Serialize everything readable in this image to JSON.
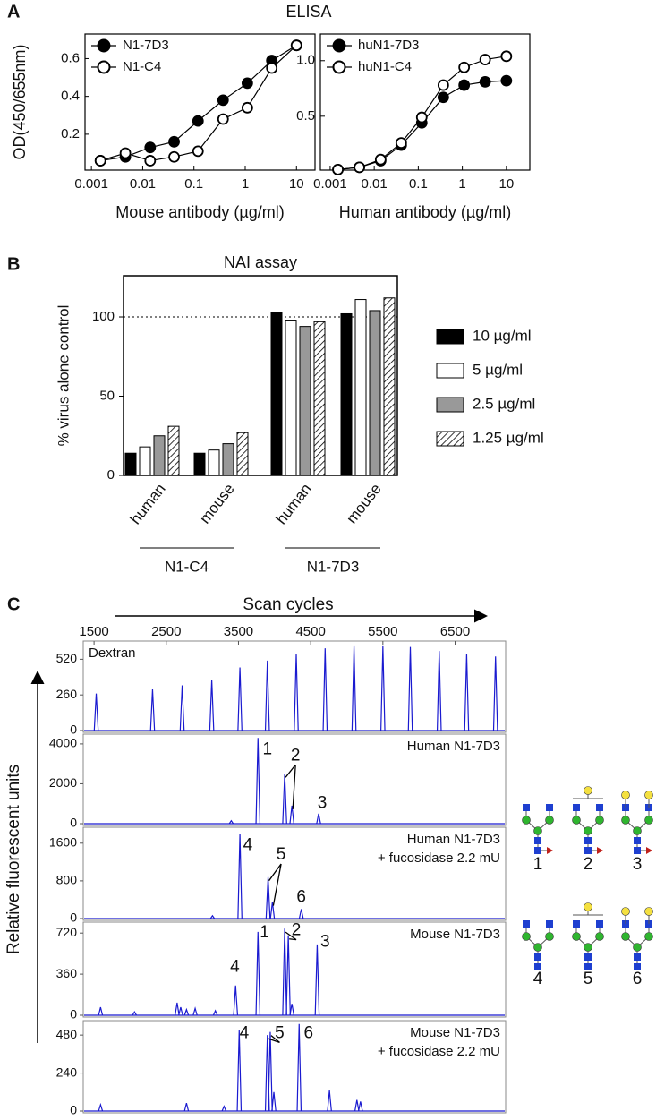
{
  "panel_labels": [
    "A",
    "B",
    "C"
  ],
  "chart_data": [
    {
      "type": "line",
      "title": "ELISA",
      "xlabel": "Mouse antibody (µg/ml)",
      "ylabel": "OD(450/655nm)",
      "log_x": true,
      "x": [
        0.0015,
        0.0046,
        0.014,
        0.041,
        0.12,
        0.37,
        1.1,
        3.3,
        10
      ],
      "series": [
        {
          "name": "N1-7D3",
          "color": "#000000",
          "values": [
            0.06,
            0.08,
            0.13,
            0.16,
            0.27,
            0.38,
            0.47,
            0.59,
            0.67
          ]
        },
        {
          "name": "N1-C4",
          "color": "#ffffff",
          "values": [
            0.06,
            0.1,
            0.06,
            0.08,
            0.11,
            0.28,
            0.34,
            0.55,
            0.67
          ]
        }
      ],
      "xlim": [
        0.00075,
        23
      ],
      "ylim": [
        0.01,
        0.73
      ],
      "xticks": [
        0.001,
        0.01,
        0.1,
        1,
        10
      ],
      "yticks": [
        0.2,
        0.4,
        0.6
      ]
    },
    {
      "type": "line",
      "xlabel": "Human antibody (µg/ml)",
      "log_x": true,
      "x": [
        0.0015,
        0.0046,
        0.014,
        0.041,
        0.12,
        0.37,
        1.1,
        3.3,
        10
      ],
      "series": [
        {
          "name": "huN1-7D3",
          "color": "#000000",
          "values": [
            0.02,
            0.04,
            0.1,
            0.24,
            0.44,
            0.67,
            0.78,
            0.81,
            0.82
          ]
        },
        {
          "name": "huN1-C4",
          "color": "#ffffff",
          "values": [
            0.02,
            0.04,
            0.11,
            0.26,
            0.49,
            0.78,
            0.94,
            1.01,
            1.04
          ]
        }
      ],
      "xlim": [
        0.0006,
        34
      ],
      "ylim": [
        0.015,
        1.24
      ],
      "xticks": [
        0.001,
        0.01,
        0.1,
        1,
        10
      ],
      "yticks": [
        0.5,
        {
          "value": 1,
          "label": "1.0"
        }
      ]
    },
    {
      "type": "bar",
      "title": "NAI assay",
      "ylabel": "% virus alone control",
      "categories": [
        "human",
        "mouse",
        "human",
        "mouse"
      ],
      "groups": [
        "N1-C4",
        "N1-7D3"
      ],
      "series": [
        {
          "name": "10 µg/ml",
          "color": "#000000",
          "values": [
            14,
            14,
            103,
            102
          ]
        },
        {
          "name": "5 µg/ml",
          "color": "#ffffff",
          "values": [
            18,
            16,
            98,
            111
          ]
        },
        {
          "name": "2.5 µg/ml",
          "color": "#999999",
          "values": [
            25,
            20,
            94,
            104
          ]
        },
        {
          "name": "1.25 µg/ml",
          "color": "#ffffff",
          "hatch": true,
          "values": [
            31,
            27,
            97,
            112
          ]
        }
      ],
      "reference_line": 100,
      "ylim": [
        0,
        126
      ],
      "yticks": [
        0,
        50,
        100
      ]
    },
    {
      "type": "spectrum",
      "label": [
        "Dextran"
      ],
      "xlabel": "Scan cycles",
      "ylabel": "Relative fluorescent units",
      "color": "#1a1ad0",
      "x": [
        1530,
        2310,
        2720,
        3130,
        3520,
        3900,
        4300,
        4700,
        5100,
        5500,
        5880,
        6280,
        6660,
        7060
      ],
      "values": [
        270,
        300,
        330,
        370,
        460,
        510,
        560,
        600,
        615,
        615,
        610,
        580,
        560,
        540
      ],
      "xlim": [
        1350,
        7200
      ],
      "xticks": [
        1500,
        2500,
        3500,
        4500,
        5500,
        6500
      ],
      "ylim": [
        0,
        640
      ],
      "yticks": [
        0,
        260,
        520
      ]
    },
    {
      "type": "spectrum",
      "label": [
        "Human N1-7D3"
      ],
      "color": "#1a1ad0",
      "x": [
        3400,
        3770,
        4140,
        4240,
        4610
      ],
      "values": [
        150,
        4300,
        2500,
        900,
        500
      ],
      "annotations": [
        {
          "text": "1",
          "x": 3900,
          "y": 3700
        },
        {
          "text": "2",
          "x": 4290,
          "y": 3400,
          "points_to": [
            2,
            3
          ]
        },
        {
          "text": "3",
          "x": 4660,
          "y": 1000
        }
      ],
      "xlim": [
        1350,
        7200
      ],
      "ylim": [
        0,
        4400
      ],
      "yticks": [
        0,
        2000,
        4000
      ]
    },
    {
      "type": "spectrum",
      "label": [
        "Human N1-7D3",
        "+ fucosidase 2.2 mU"
      ],
      "color": "#1a1ad0",
      "x": [
        3140,
        3520,
        3910,
        3970,
        4370
      ],
      "values": [
        60,
        1800,
        880,
        350,
        200
      ],
      "annotations": [
        {
          "text": "4",
          "x": 3630,
          "y": 1550
        },
        {
          "text": "5",
          "x": 4090,
          "y": 1350,
          "points_to": [
            2,
            3
          ]
        },
        {
          "text": "6",
          "x": 4370,
          "y": 450
        }
      ],
      "xlim": [
        1350,
        7200
      ],
      "ylim": [
        0,
        1900
      ],
      "yticks": [
        0,
        800,
        1600
      ]
    },
    {
      "type": "spectrum",
      "label": [
        "Mouse N1-7D3"
      ],
      "color": "#1a1ad0",
      "x": [
        1590,
        2060,
        2650,
        2700,
        2780,
        2900,
        3180,
        3460,
        3770,
        4140,
        4190,
        4240,
        4590
      ],
      "values": [
        70,
        30,
        110,
        70,
        50,
        60,
        40,
        260,
        730,
        760,
        700,
        100,
        620
      ],
      "annotations": [
        {
          "text": "4",
          "x": 3450,
          "y": 420
        },
        {
          "text": "1",
          "x": 3860,
          "y": 720
        },
        {
          "text": "2",
          "x": 4300,
          "y": 740,
          "points_to": [
            9,
            10
          ]
        },
        {
          "text": "3",
          "x": 4700,
          "y": 640
        }
      ],
      "xlim": [
        1350,
        7200
      ],
      "ylim": [
        0,
        800
      ],
      "yticks": [
        0,
        360,
        720
      ]
    },
    {
      "type": "spectrum",
      "label": [
        "Mouse N1-7D3",
        "+ fucosidase 2.2 mU"
      ],
      "color": "#1a1ad0",
      "x": [
        1590,
        2780,
        3300,
        3510,
        3900,
        3940,
        3990,
        4340,
        4760,
        5140,
        5190
      ],
      "values": [
        40,
        50,
        30,
        510,
        480,
        500,
        120,
        550,
        130,
        70,
        60
      ],
      "annotations": [
        {
          "text": "4",
          "x": 3580,
          "y": 490
        },
        {
          "text": "5",
          "x": 4070,
          "y": 490,
          "points_to": [
            4,
            5
          ]
        },
        {
          "text": "6",
          "x": 4470,
          "y": 490
        }
      ],
      "xlim": [
        1350,
        7200
      ],
      "ylim": [
        0,
        560
      ],
      "yticks": [
        0,
        240,
        480
      ]
    }
  ],
  "glycans": {
    "labels": [
      "1",
      "2",
      "3",
      "4",
      "5",
      "6"
    ]
  }
}
